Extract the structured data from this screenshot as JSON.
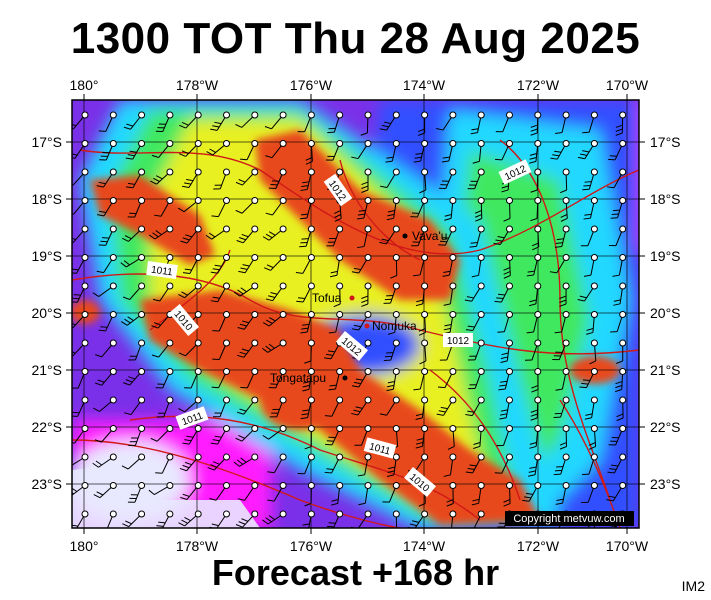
{
  "title": "1300 TOT Thu 28 Aug 2025",
  "subtitle": "Forecast +168 hr",
  "corner_tag": "IM2",
  "copyright": "Copyright metvuw.com",
  "lon_labels": [
    "180°",
    "178°W",
    "176°W",
    "174°W",
    "172°W",
    "170°W"
  ],
  "lat_labels": [
    "17°S",
    "18°S",
    "19°S",
    "20°S",
    "21°S",
    "22°S",
    "23°S"
  ],
  "places": [
    {
      "name": "Vava'u"
    },
    {
      "name": "Tofua"
    },
    {
      "name": "Nomuka"
    },
    {
      "name": "Tongatapu"
    }
  ],
  "isobar_labels": [
    "1012",
    "1012",
    "1011",
    "1010",
    "1012",
    "1012",
    "1011",
    "1011",
    "1010"
  ],
  "colors": {
    "accent_dark": "#e8481a",
    "isobar": "#d01818",
    "background": "#ffffff"
  }
}
